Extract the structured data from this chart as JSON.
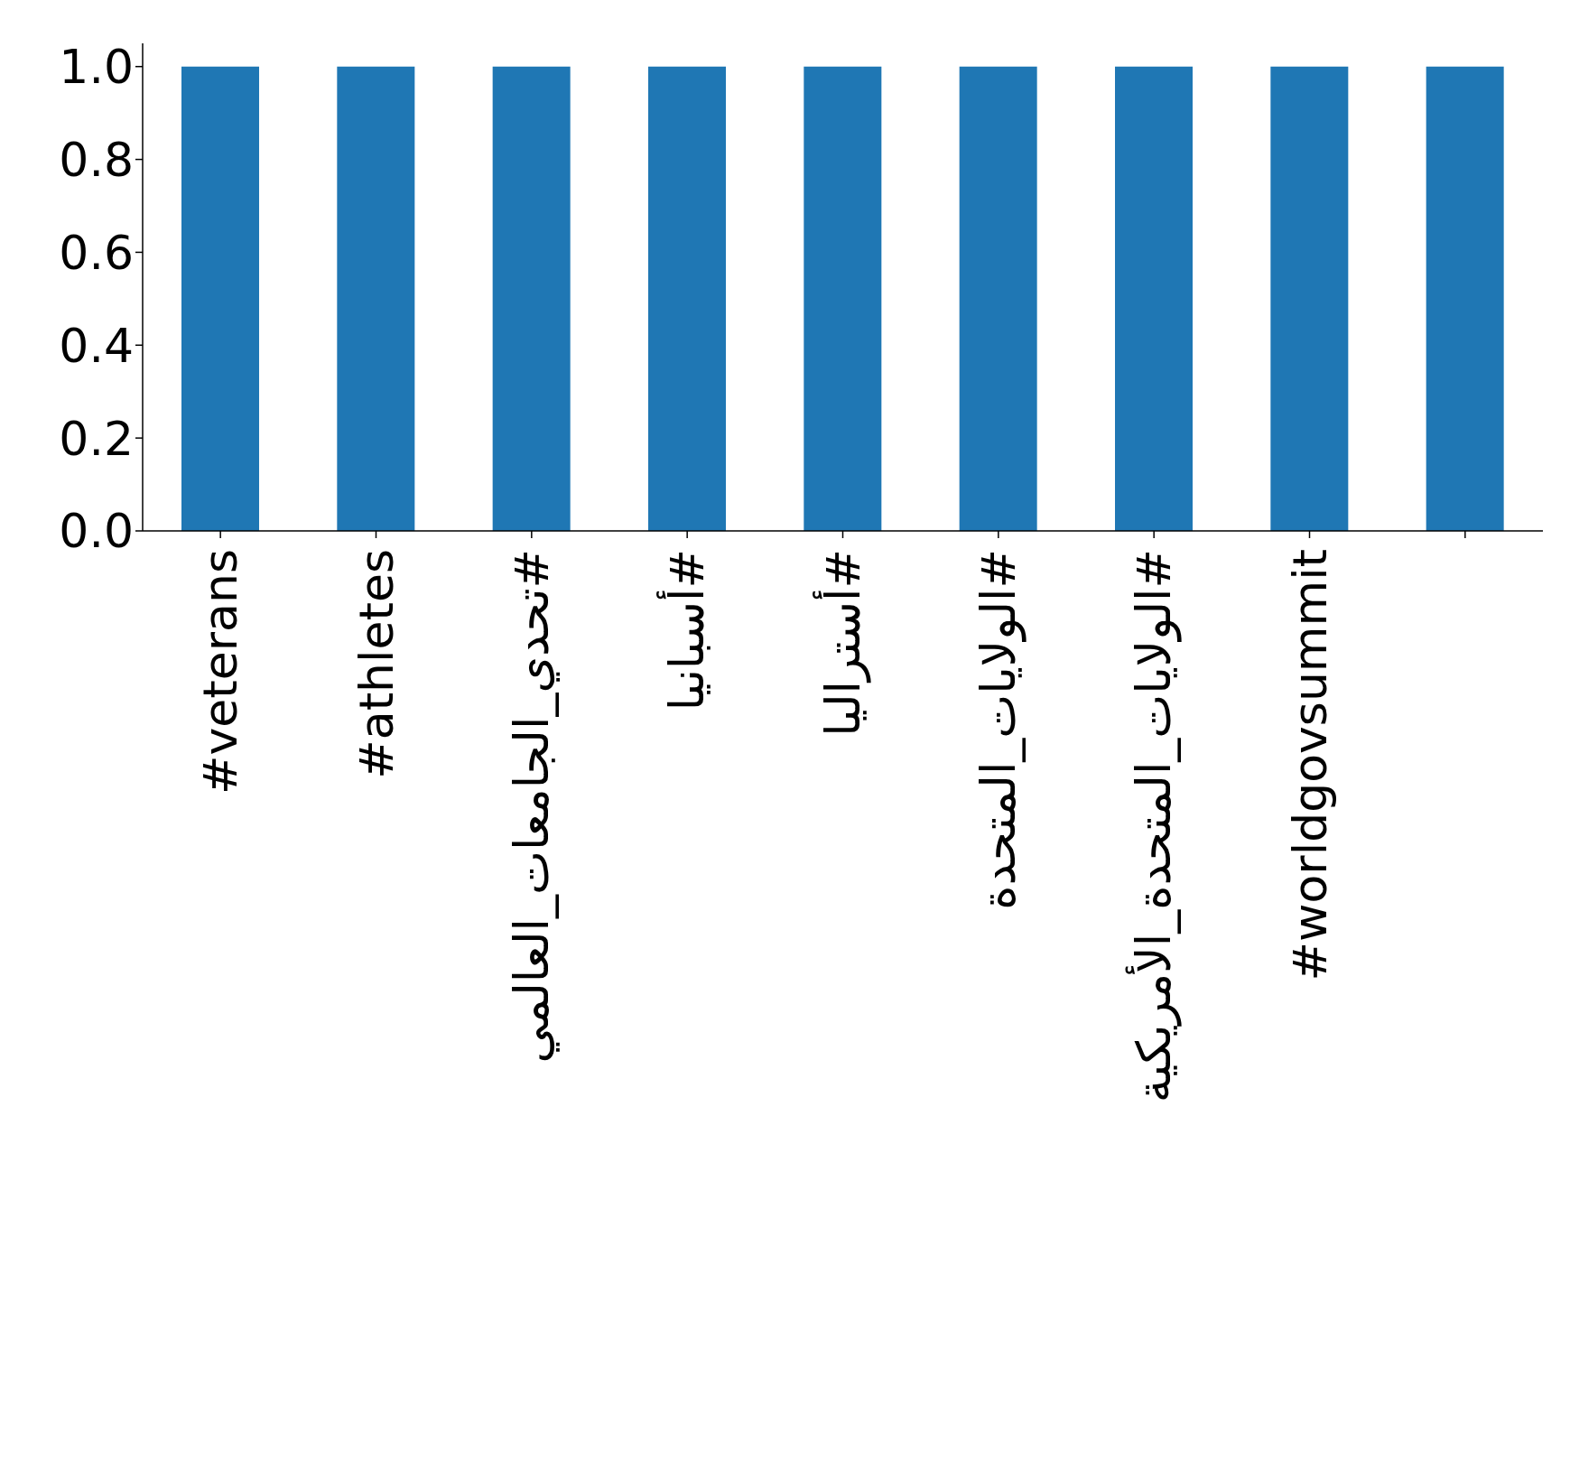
{
  "chart_data": {
    "type": "bar",
    "categories": [
      "#veterans",
      "#athletes",
      "#تحدي_الجامعات_العالمي",
      "#أسبانيا",
      "#أستراليا",
      "#الولايات_المتحدة",
      "#الولايات_المتحدة_الأمريكية",
      "#worldgovsummit",
      null
    ],
    "values": [
      1,
      1,
      1,
      1,
      1,
      1,
      1,
      1,
      1
    ],
    "color": "#1f77b4",
    "ylim": [
      0,
      1.05
    ],
    "yticks": [
      {
        "value": 0,
        "label": "0.0"
      },
      {
        "value": 0.2,
        "label": "0.2"
      },
      {
        "value": 0.4,
        "label": "0.4"
      },
      {
        "value": 0.6,
        "label": "0.6"
      },
      {
        "value": 0.8,
        "label": "0.8"
      },
      {
        "value": 1,
        "label": "1.0"
      }
    ],
    "grid": false,
    "legend": false
  }
}
